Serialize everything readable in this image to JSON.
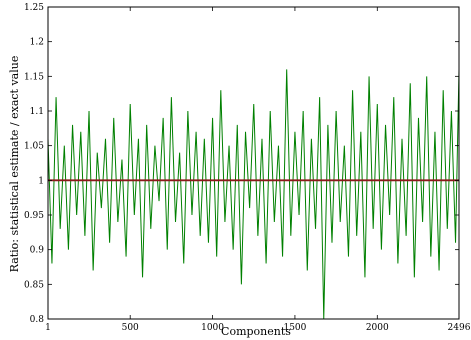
{
  "chart_data": {
    "type": "line",
    "title": "",
    "xlabel": "Components",
    "ylabel": "Ratio: statistical estimate / exact value",
    "xlim": [
      1,
      2496
    ],
    "ylim": [
      0.8,
      1.25
    ],
    "xticks": [
      1,
      500,
      1000,
      1500,
      2000,
      2496
    ],
    "xtick_labels": [
      "1",
      "500",
      "1000",
      "1500",
      "2000",
      "2496"
    ],
    "yticks": [
      0.8,
      0.85,
      0.9,
      0.95,
      1,
      1.05,
      1.1,
      1.15,
      1.2,
      1.25
    ],
    "ytick_labels": [
      "0.8",
      "0.85",
      "0.9",
      "0.95",
      "1",
      "1.05",
      "1.1",
      "1.15",
      "1.2",
      "1.25"
    ],
    "grid": false,
    "legend": "none",
    "series": [
      {
        "color": "#008000",
        "x": [
          1,
          25,
          50,
          75,
          100,
          125,
          150,
          175,
          200,
          225,
          250,
          275,
          300,
          325,
          350,
          375,
          400,
          425,
          450,
          475,
          500,
          525,
          550,
          575,
          600,
          625,
          650,
          675,
          700,
          725,
          750,
          775,
          800,
          825,
          850,
          875,
          900,
          925,
          950,
          975,
          1000,
          1025,
          1050,
          1075,
          1100,
          1125,
          1150,
          1175,
          1200,
          1225,
          1250,
          1275,
          1300,
          1325,
          1350,
          1375,
          1400,
          1425,
          1450,
          1475,
          1500,
          1525,
          1550,
          1575,
          1600,
          1625,
          1650,
          1675,
          1700,
          1725,
          1750,
          1775,
          1800,
          1825,
          1850,
          1875,
          1900,
          1925,
          1950,
          1975,
          2000,
          2025,
          2050,
          2075,
          2100,
          2125,
          2150,
          2175,
          2200,
          2225,
          2250,
          2275,
          2300,
          2325,
          2350,
          2375,
          2400,
          2425,
          2450,
          2475,
          2496
        ],
        "y": [
          1.06,
          0.88,
          1.12,
          0.93,
          1.05,
          0.9,
          1.08,
          0.95,
          1.07,
          0.92,
          1.1,
          0.87,
          1.04,
          0.96,
          1.06,
          0.91,
          1.09,
          0.94,
          1.03,
          0.89,
          1.11,
          0.95,
          1.06,
          0.86,
          1.08,
          0.93,
          1.05,
          0.97,
          1.09,
          0.9,
          1.12,
          0.94,
          1.04,
          0.88,
          1.1,
          0.95,
          1.07,
          0.92,
          1.06,
          0.91,
          1.09,
          0.89,
          1.13,
          0.94,
          1.05,
          0.9,
          1.08,
          0.85,
          1.07,
          0.96,
          1.11,
          0.92,
          1.06,
          0.88,
          1.1,
          0.94,
          1.05,
          0.89,
          1.16,
          0.92,
          1.07,
          0.95,
          1.1,
          0.87,
          1.06,
          0.93,
          1.12,
          0.8,
          1.08,
          0.91,
          1.1,
          0.94,
          1.05,
          0.89,
          1.13,
          0.92,
          1.07,
          0.86,
          1.15,
          0.93,
          1.11,
          0.9,
          1.08,
          0.95,
          1.12,
          0.88,
          1.06,
          0.92,
          1.14,
          0.86,
          1.09,
          0.94,
          1.15,
          0.89,
          1.07,
          0.87,
          1.13,
          0.93,
          1.1,
          0.91,
          1.16
        ]
      },
      {
        "color": "#8b1a1a",
        "x": [
          1,
          2496
        ],
        "y": [
          1.0,
          1.0
        ]
      }
    ]
  }
}
